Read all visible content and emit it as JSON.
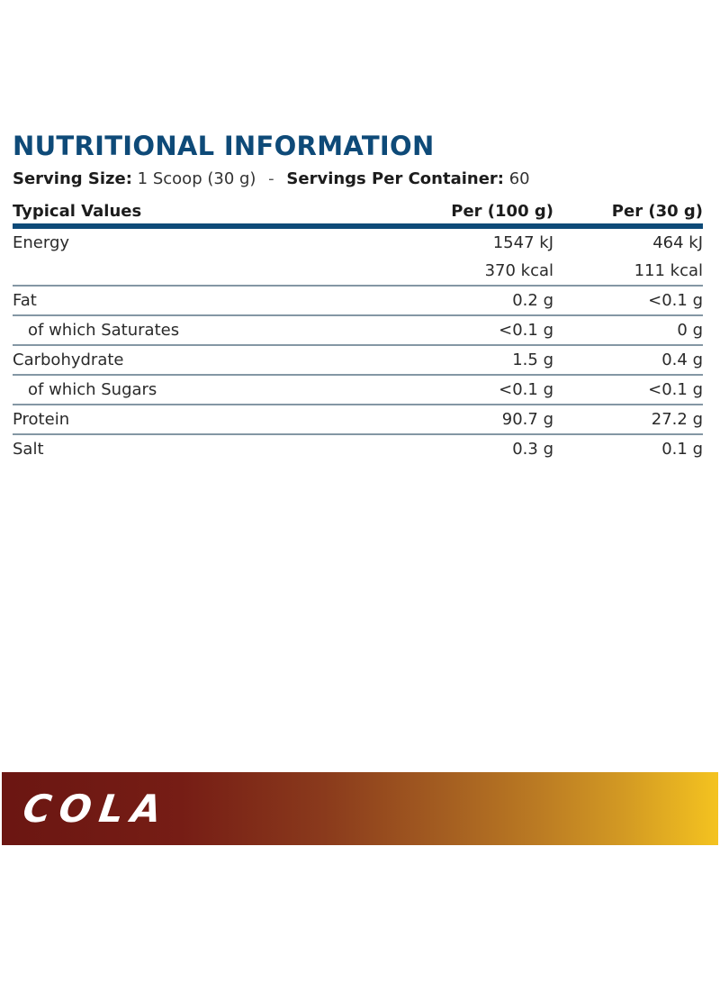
{
  "panel": {
    "title": "NUTRITIONAL INFORMATION",
    "serving": {
      "size_label": "Serving Size:",
      "size_value": "1 Scoop (30 g)",
      "separator": "-",
      "servings_label": "Servings Per Container:",
      "servings_value": "60"
    },
    "table": {
      "headers": [
        "Typical Values",
        "Per (100 g)",
        "Per (30 g)"
      ],
      "rows": [
        {
          "name": "Energy",
          "per100": "1547 kJ",
          "per30": "464 kJ",
          "per100_b": "370 kcal",
          "per30_b": "111 kcal"
        },
        {
          "name": "Fat",
          "per100": "0.2 g",
          "per30": "<0.1 g"
        },
        {
          "name": "of which Saturates",
          "per100": "<0.1 g",
          "per30": "0 g"
        },
        {
          "name": "Carbohydrate",
          "per100": "1.5 g",
          "per30": "0.4 g"
        },
        {
          "name": "of which Sugars",
          "per100": "<0.1 g",
          "per30": "<0.1 g"
        },
        {
          "name": "Protein",
          "per100": "90.7 g",
          "per30": "27.2 g"
        },
        {
          "name": "Salt",
          "per100": "0.3 g",
          "per30": "0.1 g"
        }
      ]
    }
  },
  "banner": {
    "flavor": "COLA",
    "gradient_start": "#6b1612",
    "gradient_end": "#f4c320"
  },
  "colors": {
    "title": "#0e4a78",
    "header_bar": "#0e4a78",
    "divider": "#8497a4"
  }
}
